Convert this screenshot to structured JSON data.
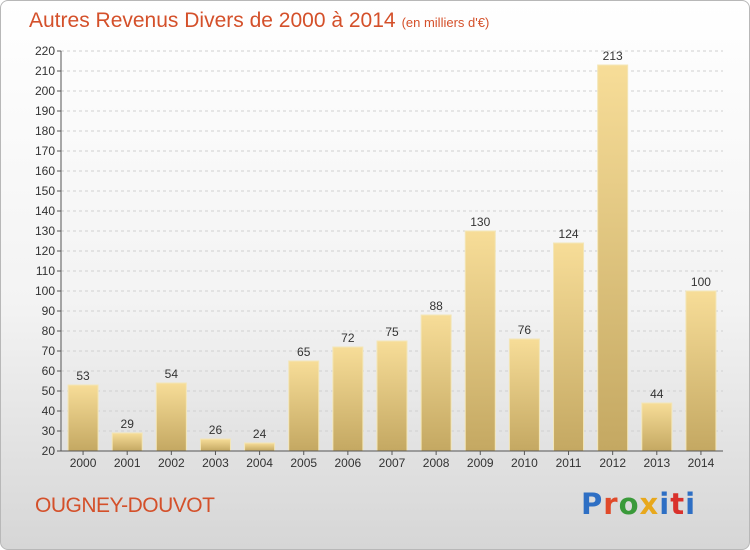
{
  "header": {
    "title": "Autres Revenus Divers de 2000 à 2014",
    "subtitle": "(en milliers d'€)"
  },
  "footer": {
    "town": "OUGNEY-DOUVOT",
    "logo": "Proxiti",
    "logo_colors": [
      "#2e6fc4",
      "#e04a2a",
      "#3a9a3a",
      "#e8a81c",
      "#2e6fc4",
      "#d9312c",
      "#2e6fc4"
    ]
  },
  "chart_data": {
    "type": "bar",
    "categories": [
      "2000",
      "2001",
      "2002",
      "2003",
      "2004",
      "2005",
      "2006",
      "2007",
      "2008",
      "2009",
      "2010",
      "2011",
      "2012",
      "2013",
      "2014"
    ],
    "values": [
      53,
      29,
      54,
      26,
      24,
      65,
      72,
      75,
      88,
      130,
      76,
      124,
      213,
      44,
      100
    ],
    "ylim": [
      20,
      220
    ],
    "yticks": [
      20,
      30,
      40,
      50,
      60,
      70,
      80,
      90,
      100,
      110,
      120,
      130,
      140,
      150,
      160,
      170,
      180,
      190,
      200,
      210,
      220
    ],
    "grid": true,
    "bar_color_top": "#f7dd98",
    "bar_color_bottom": "#c4a862"
  }
}
